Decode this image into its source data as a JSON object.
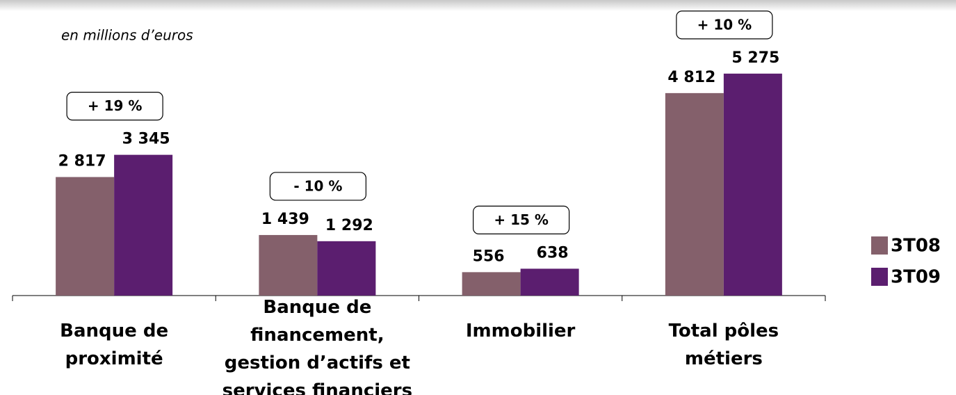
{
  "chart_data": {
    "type": "bar",
    "subtitle": "en millions d’euros",
    "categories": [
      [
        "Banque de",
        "proximité"
      ],
      [
        "Banque de",
        "financement,",
        "gestion d’actifs et",
        "services financiers"
      ],
      [
        "Immobilier"
      ],
      [
        "Total pôles",
        "métiers"
      ]
    ],
    "series": [
      {
        "name": "3T08",
        "color": "#84606b",
        "values": [
          2817,
          1439,
          556,
          4812
        ],
        "value_labels": [
          "2 817",
          "1 439",
          "556",
          "4 812"
        ]
      },
      {
        "name": "3T09",
        "color": "#5b1e6f",
        "values": [
          3345,
          1292,
          638,
          5275
        ],
        "value_labels": [
          "3 345",
          "1 292",
          "638",
          "5 275"
        ]
      }
    ],
    "annotations": [
      "+ 19 %",
      "- 10 %",
      "+ 15 %",
      "+ 10 %"
    ],
    "ylim": [
      0,
      6000
    ],
    "legend": "right"
  }
}
